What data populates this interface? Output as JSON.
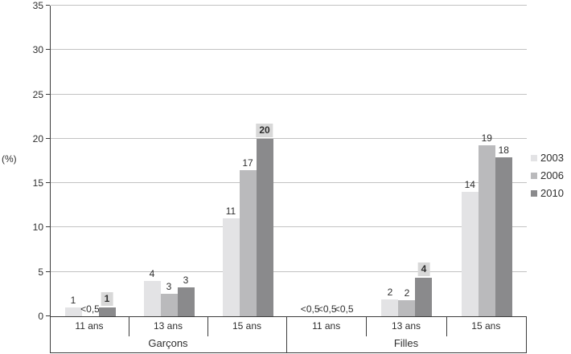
{
  "chart_data": {
    "type": "bar",
    "title": "",
    "ylabel": "(%)",
    "xlabel": "",
    "ylim": [
      0,
      35
    ],
    "yticks": [
      0,
      5,
      10,
      15,
      20,
      25,
      30,
      35
    ],
    "grid": true,
    "legend_position": "right",
    "series": [
      "2003",
      "2006",
      "2010"
    ],
    "colors": {
      "2003": "#e3e3e5",
      "2006": "#bababc",
      "2010": "#8a8a8c",
      "highlight_bg": "#d8d8d8",
      "gridline": "#c2c2c2",
      "axis": "#3c3c3c"
    },
    "sex_groups": [
      {
        "label": "Garçons"
      },
      {
        "label": "Filles"
      }
    ],
    "groups": [
      {
        "sex": "Garçons",
        "age": "11 ans",
        "bars": [
          {
            "series": "2003",
            "value": 1,
            "label": "1",
            "highlight": false
          },
          {
            "series": "2006",
            "value": 0,
            "label": "<0,5",
            "highlight": false
          },
          {
            "series": "2010",
            "value": 1,
            "label": "1",
            "highlight": true
          }
        ]
      },
      {
        "sex": "Garçons",
        "age": "13 ans",
        "bars": [
          {
            "series": "2003",
            "value": 4,
            "label": "4",
            "highlight": false
          },
          {
            "series": "2006",
            "value": 2.5,
            "label": "3",
            "highlight": false
          },
          {
            "series": "2010",
            "value": 3.3,
            "label": "3",
            "highlight": false
          }
        ]
      },
      {
        "sex": "Garçons",
        "age": "15 ans",
        "bars": [
          {
            "series": "2003",
            "value": 11,
            "label": "11",
            "highlight": false
          },
          {
            "series": "2006",
            "value": 16.5,
            "label": "17",
            "highlight": false
          },
          {
            "series": "2010",
            "value": 20,
            "label": "20",
            "highlight": true
          }
        ]
      },
      {
        "sex": "Filles",
        "age": "11 ans",
        "bars": [
          {
            "series": "2003",
            "value": 0,
            "label": "<0,5",
            "highlight": false
          },
          {
            "series": "2006",
            "value": 0,
            "label": "<0,5",
            "highlight": false
          },
          {
            "series": "2010",
            "value": 0,
            "label": "<0,5",
            "highlight": false
          }
        ]
      },
      {
        "sex": "Filles",
        "age": "13 ans",
        "bars": [
          {
            "series": "2003",
            "value": 1.9,
            "label": "2",
            "highlight": false
          },
          {
            "series": "2006",
            "value": 1.8,
            "label": "2",
            "highlight": false
          },
          {
            "series": "2010",
            "value": 4.3,
            "label": "4",
            "highlight": true
          }
        ]
      },
      {
        "sex": "Filles",
        "age": "15 ans",
        "bars": [
          {
            "series": "2003",
            "value": 14,
            "label": "14",
            "highlight": false
          },
          {
            "series": "2006",
            "value": 19.3,
            "label": "19",
            "highlight": false
          },
          {
            "series": "2010",
            "value": 17.9,
            "label": "18",
            "highlight": false
          }
        ]
      }
    ]
  },
  "legend": {
    "items": [
      {
        "label": "2003",
        "color": "#e3e3e5"
      },
      {
        "label": "2006",
        "color": "#bababc"
      },
      {
        "label": "2010",
        "color": "#8a8a8c"
      }
    ]
  }
}
